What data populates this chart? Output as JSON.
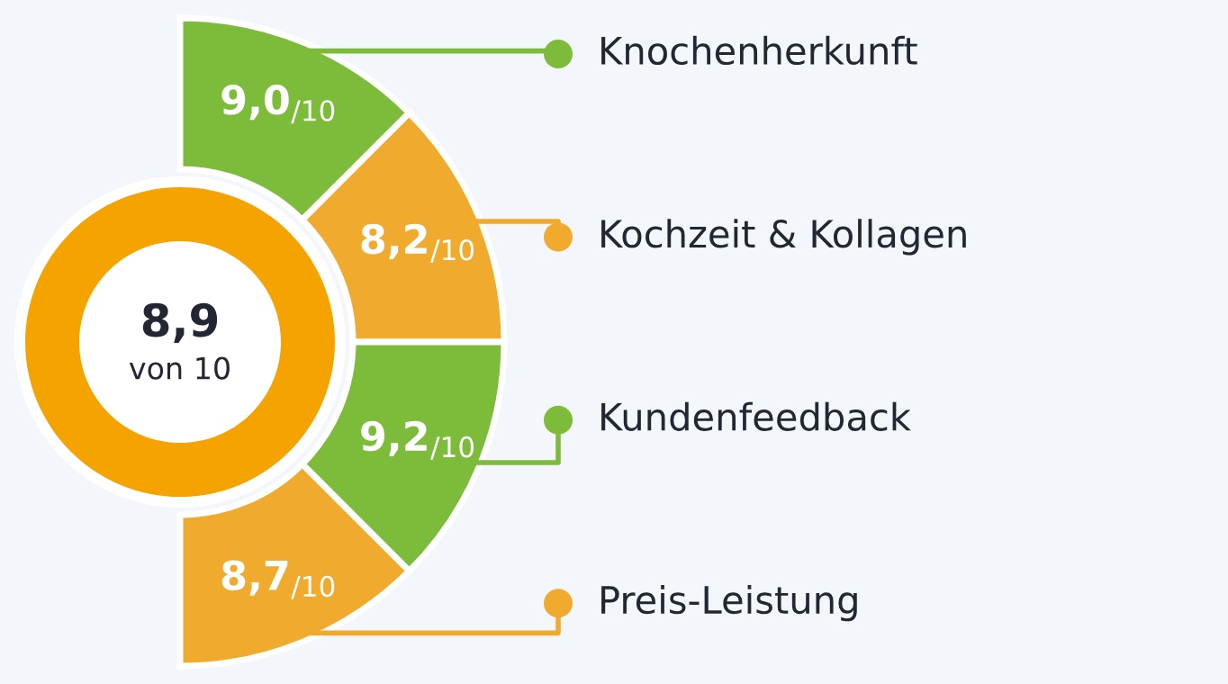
{
  "chart_data": {
    "type": "other",
    "categories": [
      "Knochenherkunft",
      "Kochzeit & Kollagen",
      "Kundenfeedback",
      "Preis-Leistung"
    ],
    "values": [
      9.0,
      8.2,
      9.2,
      8.7
    ],
    "value_labels": [
      "9,0$_{/10}$",
      "8,2$_{/10}$",
      "9,2$_{/10}$",
      "8,7$_{/10}$"
    ],
    "colors": [
      "#7dbb3a",
      "#f0ab2e",
      "#7dbb3a",
      "#f0ab2e"
    ],
    "annotations": [
      "8,9",
      "von 10"
    ]
  }
}
